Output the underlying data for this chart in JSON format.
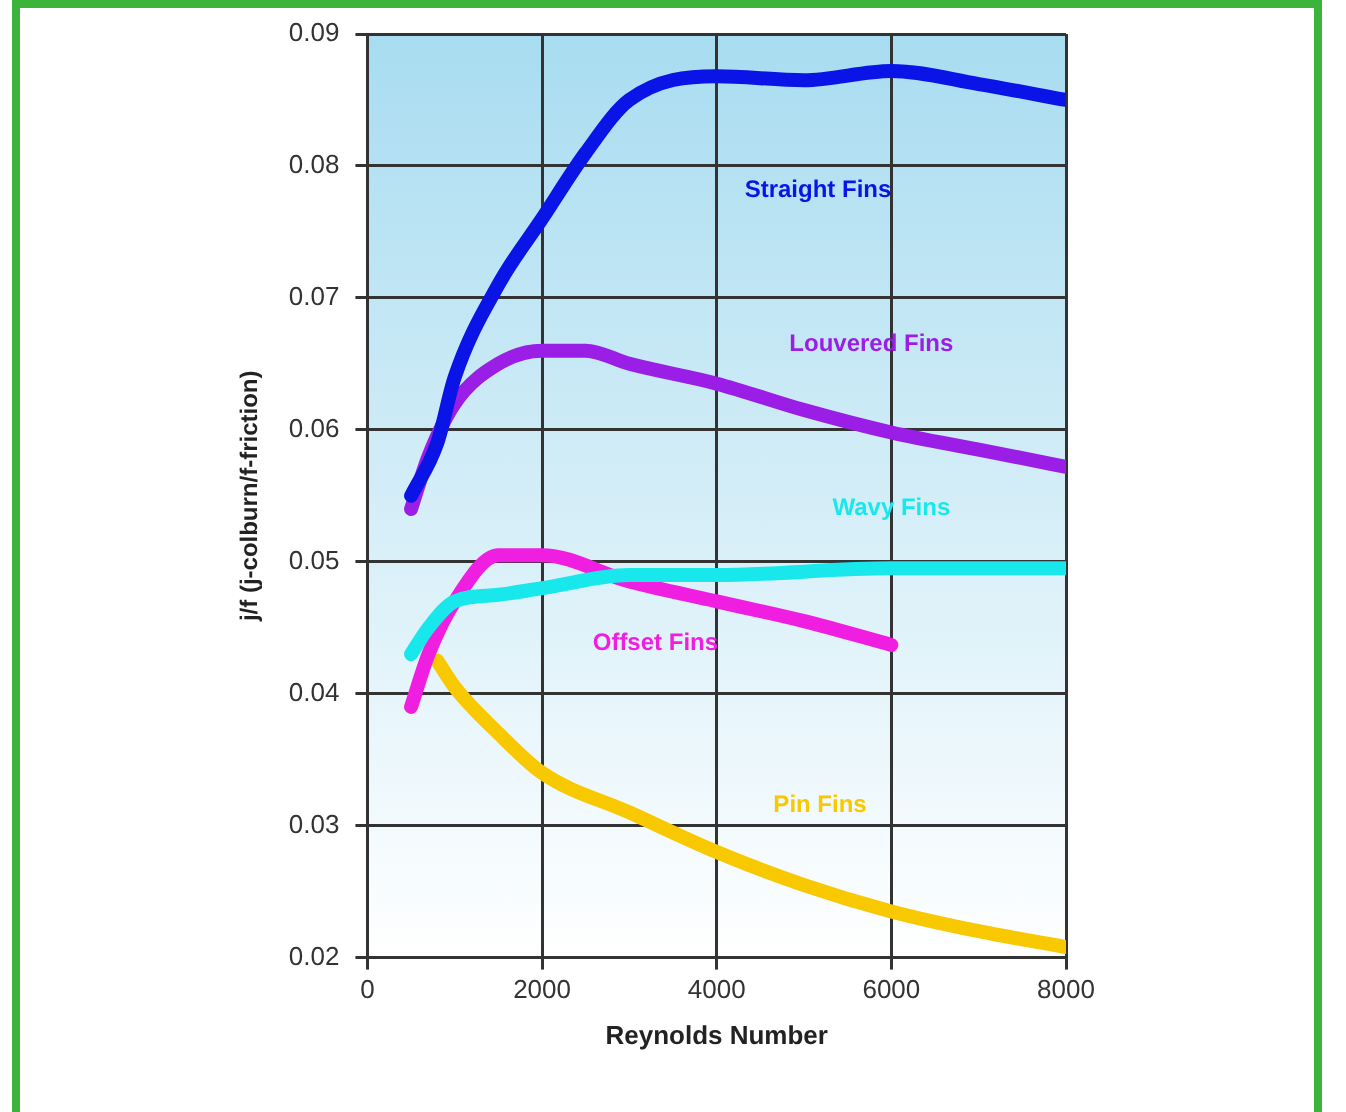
{
  "chart_data": {
    "type": "line",
    "xlabel": "Reynolds Number",
    "ylabel": "j/f (j-colburn/f-friction)",
    "xlim": [
      0,
      8000
    ],
    "xticks": [
      0,
      2000,
      4000,
      6000,
      8000
    ],
    "ylim": [
      0.02,
      0.09
    ],
    "yticks": [
      0.02,
      0.03,
      0.04,
      0.05,
      0.06,
      0.07,
      0.08,
      0.09
    ],
    "grid": true,
    "series": [
      {
        "name": "Straight Fins",
        "color": "#0a14e6",
        "x": [
          500,
          800,
          1000,
          1500,
          2000,
          2500,
          3000,
          4000,
          5000,
          6000,
          7000,
          8000
        ],
        "values": [
          0.055,
          0.059,
          0.064,
          0.071,
          0.076,
          0.081,
          0.085,
          0.0868,
          0.0865,
          0.0872,
          0.0862,
          0.085
        ]
      },
      {
        "name": "Louvered Fins",
        "color": "#9a1ee6",
        "x": [
          500,
          700,
          1000,
          1500,
          2000,
          2500,
          3000,
          4000,
          5000,
          6000,
          7000,
          8000
        ],
        "values": [
          0.054,
          0.058,
          0.062,
          0.065,
          0.066,
          0.066,
          0.065,
          0.0635,
          0.0615,
          0.0598,
          0.0585,
          0.0572
        ]
      },
      {
        "name": "Wavy Fins",
        "color": "#18e8ec",
        "x": [
          500,
          700,
          1000,
          1500,
          2000,
          3000,
          4000,
          6000,
          8000
        ],
        "values": [
          0.043,
          0.045,
          0.047,
          0.0475,
          0.048,
          0.049,
          0.049,
          0.0495,
          0.0495
        ]
      },
      {
        "name": "Offset Fins",
        "color": "#f01ee0",
        "x": [
          500,
          700,
          1000,
          1500,
          2000,
          3000,
          4000,
          5000,
          6000
        ],
        "values": [
          0.039,
          0.043,
          0.047,
          0.0505,
          0.0505,
          0.0485,
          0.047,
          0.0455,
          0.0437
        ]
      },
      {
        "name": "Pin Fins",
        "color": "#f8c800",
        "x": [
          800,
          1000,
          1500,
          2000,
          3000,
          4000,
          5000,
          6000,
          7000,
          8000
        ],
        "values": [
          0.0425,
          0.0405,
          0.037,
          0.034,
          0.031,
          0.028,
          0.0255,
          0.0235,
          0.022,
          0.0208
        ]
      }
    ]
  }
}
